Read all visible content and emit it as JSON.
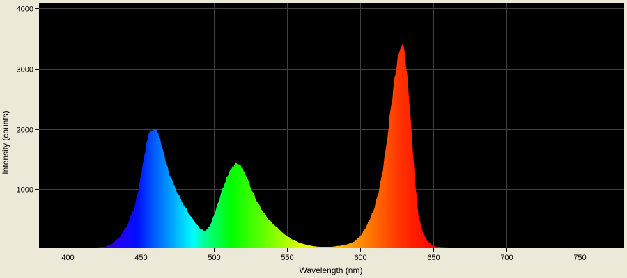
{
  "chart_data": {
    "type": "area",
    "title": "",
    "xlabel": "Wavelength (nm)",
    "ylabel": "Intensity (counts)",
    "xlim": [
      380,
      780
    ],
    "ylim": [
      25,
      4100
    ],
    "x_ticks": [
      400,
      450,
      500,
      550,
      600,
      650,
      700,
      750
    ],
    "y_ticks": [
      1000,
      2000,
      3000,
      4000
    ],
    "grid": true,
    "legend": null,
    "background": "#000000",
    "fill": "wavelength-rainbow",
    "peaks": [
      {
        "label": "blue",
        "wavelength_nm": 459.5,
        "intensity": 2010
      },
      {
        "label": "green",
        "wavelength_nm": 516,
        "intensity": 1430
      },
      {
        "label": "red",
        "wavelength_nm": 629,
        "intensity": 3400
      }
    ],
    "x": [
      420,
      425,
      430,
      435,
      440,
      445,
      448,
      450,
      452,
      454,
      456,
      458,
      459.5,
      461,
      463,
      465,
      468,
      470,
      473,
      476,
      480,
      484,
      488,
      491,
      494,
      497,
      500,
      503,
      506,
      509,
      512,
      514,
      516,
      518,
      520,
      523,
      526,
      530,
      534,
      538,
      542,
      546,
      550,
      555,
      560,
      565,
      570,
      575,
      580,
      585,
      590,
      595,
      600,
      603,
      606,
      609,
      612,
      615,
      618,
      621,
      624,
      626,
      628,
      629,
      630,
      632,
      634,
      636,
      638,
      640,
      643,
      646,
      650,
      655,
      660
    ],
    "values": [
      25,
      45,
      90,
      190,
      370,
      650,
      930,
      1220,
      1500,
      1760,
      1930,
      1985,
      2010,
      1970,
      1850,
      1650,
      1380,
      1230,
      1060,
      900,
      720,
      560,
      420,
      340,
      310,
      380,
      560,
      780,
      1000,
      1200,
      1340,
      1410,
      1430,
      1410,
      1330,
      1170,
      980,
      780,
      610,
      490,
      390,
      300,
      220,
      150,
      100,
      70,
      50,
      45,
      45,
      60,
      80,
      120,
      220,
      330,
      470,
      640,
      900,
      1260,
      1760,
      2350,
      2900,
      3200,
      3380,
      3400,
      3340,
      2950,
      2350,
      1650,
      1000,
      550,
      280,
      140,
      60,
      30,
      25
    ]
  },
  "axes": {
    "x_tick_labels": [
      "400",
      "450",
      "500",
      "550",
      "600",
      "650",
      "700",
      "750"
    ],
    "y_tick_labels": [
      "1000",
      "2000",
      "3000",
      "4000"
    ],
    "x_title": "Wavelength (nm)",
    "y_title": "Intensity (counts)"
  },
  "colors": {
    "window_bg": "#ECE9D8",
    "plot_bg": "#000000",
    "grid": "#404040"
  }
}
